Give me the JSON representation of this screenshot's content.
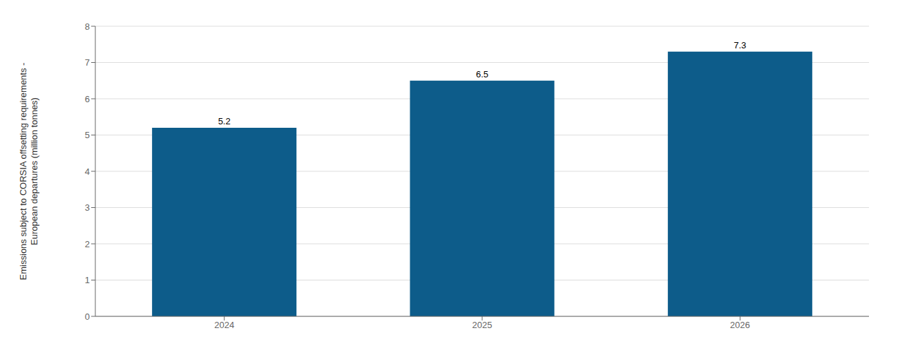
{
  "chart_data": {
    "type": "bar",
    "categories": [
      "2024",
      "2025",
      "2026"
    ],
    "values": [
      5.2,
      6.5,
      7.3
    ],
    "color": "#0d5c8a",
    "ylabel": "Emissions subject to CORSIA offsetting requirements -\nEuropean departures (million tonnes)",
    "ylim": [
      0,
      8
    ],
    "yticks": [
      0,
      1,
      2,
      3,
      4,
      5,
      6,
      7,
      8
    ],
    "grid": true,
    "data_labels": true
  }
}
